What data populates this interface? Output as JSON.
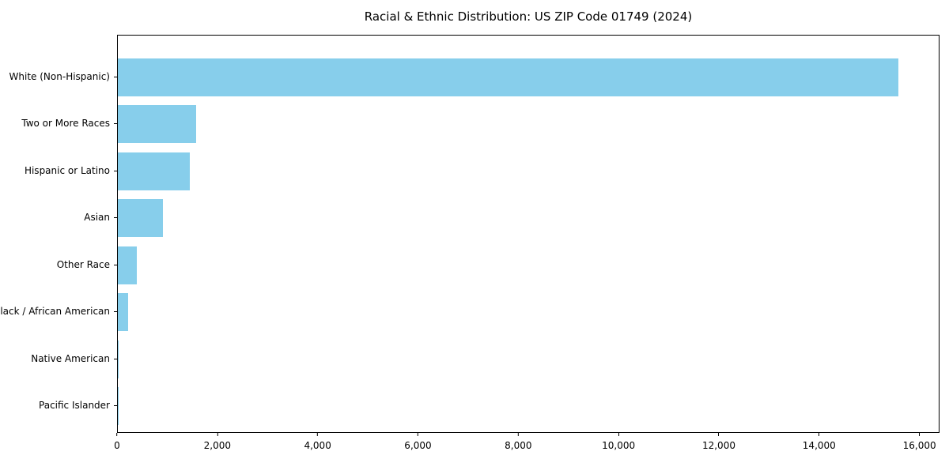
{
  "title": "Racial & Ethnic Distribution: US ZIP Code 01749 (2024)",
  "chart_data": {
    "type": "bar",
    "orientation": "horizontal",
    "title": "Racial & Ethnic Distribution: US ZIP Code 01749 (2024)",
    "categories": [
      "White (Non-Hispanic)",
      "Two or More Races",
      "Hispanic or Latino",
      "Asian",
      "Other Race",
      "Black / African American",
      "Native American",
      "Pacific Islander"
    ],
    "values": [
      15590,
      1560,
      1430,
      900,
      380,
      200,
      15,
      5
    ],
    "xlabel": "",
    "ylabel": "",
    "xlim": [
      0,
      16400
    ],
    "xticks": [
      0,
      2000,
      4000,
      6000,
      8000,
      10000,
      12000,
      14000,
      16000
    ],
    "grid": false,
    "legend": false,
    "bar_color": "#87CEEB",
    "background_color": "#FFFFFF",
    "axis_color": "#000000"
  }
}
